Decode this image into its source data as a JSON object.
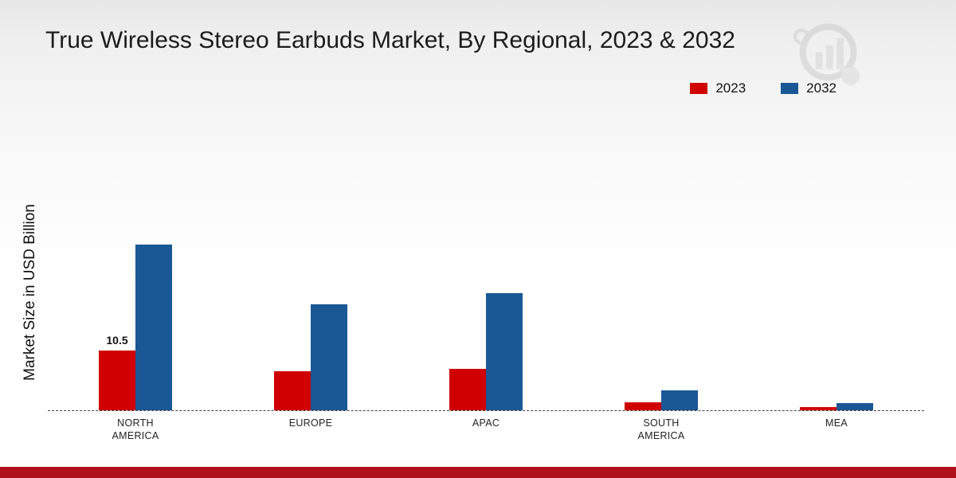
{
  "title": "True Wireless Stereo Earbuds Market, By Regional, 2023 & 2032",
  "ylabel": "Market Size in USD Billion",
  "watermark": "brand-logo-chart-magnifier",
  "footer": {
    "accent_color": "#b0121a"
  },
  "chart_data": {
    "type": "bar",
    "title": "True Wireless Stereo Earbuds Market, By Regional, 2023 & 2032",
    "xlabel": "",
    "ylabel": "Market Size in USD Billion",
    "categories": [
      "NORTH AMERICA",
      "EUROPE",
      "APAC",
      "SOUTH AMERICA",
      "MEA"
    ],
    "series": [
      {
        "name": "2023",
        "color": "#d00000",
        "values": [
          10.5,
          6.8,
          7.2,
          1.4,
          0.6
        ]
      },
      {
        "name": "2032",
        "color": "#1a5795",
        "values": [
          29.0,
          18.5,
          20.5,
          3.5,
          1.2
        ]
      }
    ],
    "annotations": [
      {
        "series": "2023",
        "category": "NORTH AMERICA",
        "text": "10.5"
      }
    ],
    "ylim": [
      0,
      30
    ],
    "grid": false,
    "baseline_style": "dashed",
    "legend_position": "top-right"
  }
}
